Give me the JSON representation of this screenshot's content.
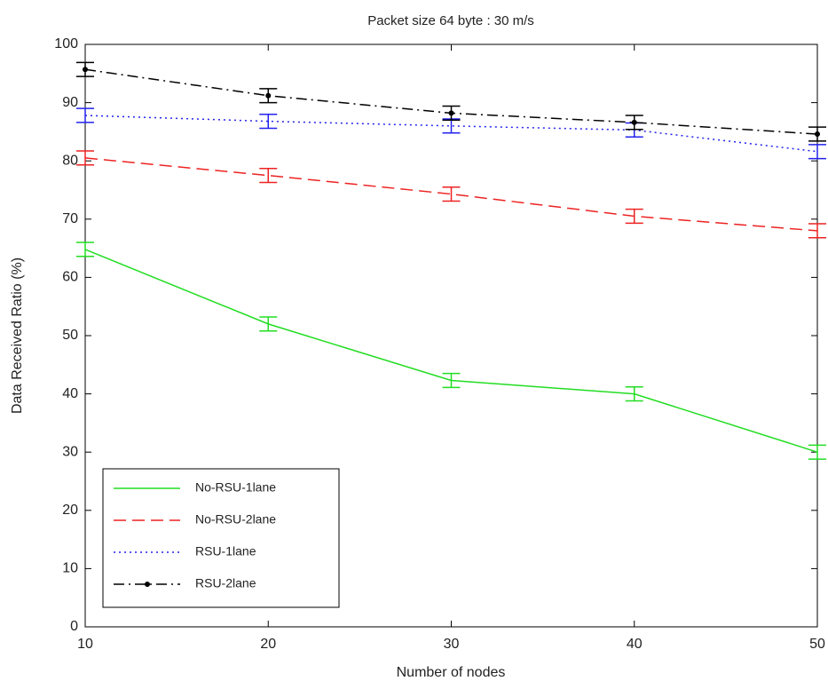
{
  "chart_data": {
    "type": "line",
    "title": "Packet size 64 byte : 30 m/s",
    "x_label": "Number of nodes",
    "y_label": "Data Received Ratio (%)",
    "x": [
      10,
      20,
      30,
      40,
      50
    ],
    "series": [
      {
        "name": "No-RSU-1lane",
        "color": "#22dd22",
        "linestyle": "solid",
        "values": [
          64.8,
          52,
          42.3,
          40,
          30
        ],
        "errors": [
          1.2,
          1.2,
          1.2,
          1.2,
          1.2
        ]
      },
      {
        "name": "No-RSU-2lane",
        "color": "#ee2222",
        "linestyle": "dashed",
        "values": [
          80.5,
          77.5,
          74.3,
          70.5,
          68
        ],
        "errors": [
          1.2,
          1.2,
          1.2,
          1.2,
          1.2
        ]
      },
      {
        "name": "RSU-1lane",
        "color": "#2222ee",
        "linestyle": "dotted",
        "values": [
          87.8,
          86.8,
          86,
          85.3,
          81.6
        ],
        "errors": [
          1.2,
          1.2,
          1.2,
          1.2,
          1.2
        ]
      },
      {
        "name": "RSU-2lane",
        "color": "#000000",
        "linestyle": "dashdot",
        "marker": "dot",
        "values": [
          95.7,
          91.2,
          88.2,
          86.6,
          84.6
        ],
        "errors": [
          1.2,
          1.2,
          1.2,
          1.2,
          1.2
        ]
      }
    ],
    "xlim": [
      10,
      50
    ],
    "xticks": [
      10,
      20,
      30,
      40,
      50
    ],
    "ylim": [
      0,
      100
    ],
    "yticks": [
      0,
      10,
      20,
      30,
      40,
      50,
      60,
      70,
      80,
      90,
      100
    ],
    "legend_loc": "lower left"
  }
}
